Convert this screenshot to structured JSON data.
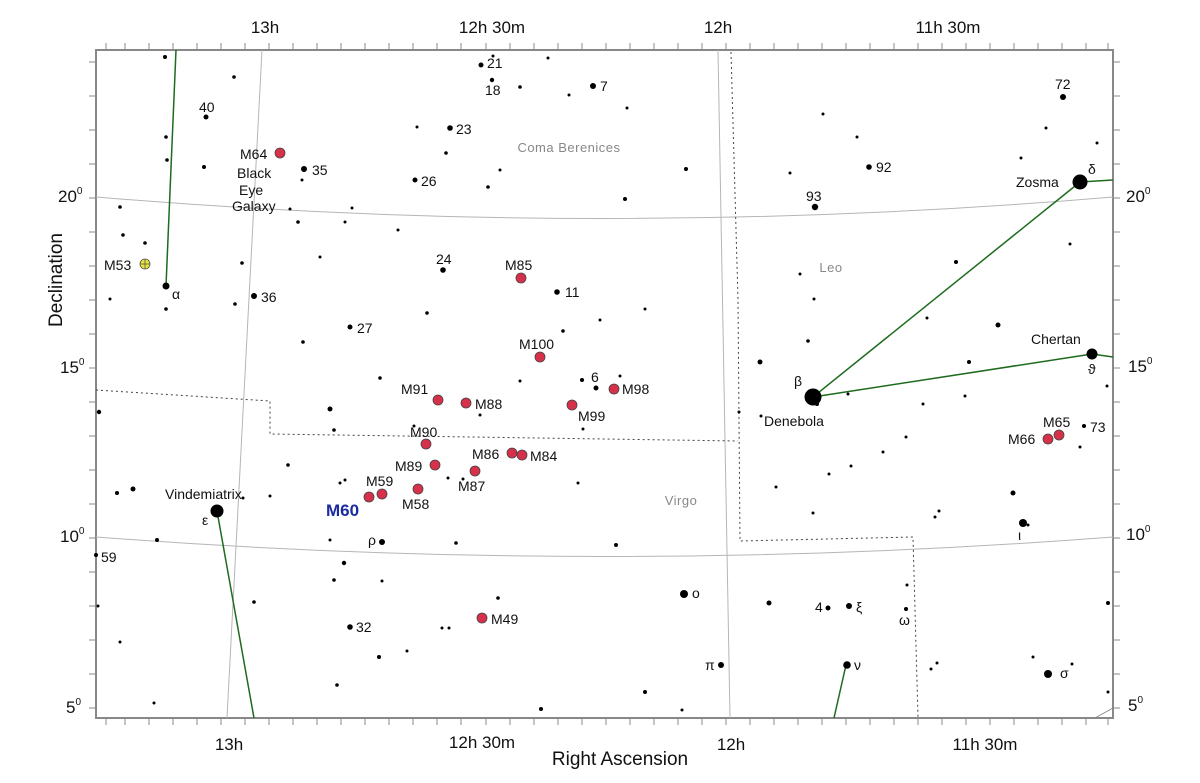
{
  "axes": {
    "ra_top_labels": [
      "13h",
      "12h 30m",
      "12h",
      "11h 30m"
    ],
    "ra_bottom_labels": [
      "13h",
      "12h 30m",
      "12h",
      "11h 30m"
    ],
    "dec_labels": [
      "5",
      "10",
      "15",
      "20"
    ],
    "degree_symbol": "0",
    "xlabel": "Right Ascension",
    "ylabel": "Declination"
  },
  "constellations": [
    "Coma Berenices",
    "Leo",
    "Virgo"
  ],
  "featured_label": "M60",
  "messier": [
    {
      "id": "m64",
      "label": "M64"
    },
    {
      "id": "m64_name_1",
      "label": "Black"
    },
    {
      "id": "m64_name_2",
      "label": "Eye"
    },
    {
      "id": "m64_name_3",
      "label": "Galaxy"
    },
    {
      "id": "m53",
      "label": "M53"
    },
    {
      "id": "m85",
      "label": "M85"
    },
    {
      "id": "m100",
      "label": "M100"
    },
    {
      "id": "m91",
      "label": "M91"
    },
    {
      "id": "m88",
      "label": "M88"
    },
    {
      "id": "m98",
      "label": "M98"
    },
    {
      "id": "m99",
      "label": "M99"
    },
    {
      "id": "m90",
      "label": "M90"
    },
    {
      "id": "m86",
      "label": "M86"
    },
    {
      "id": "m84",
      "label": "M84"
    },
    {
      "id": "m89",
      "label": "M89"
    },
    {
      "id": "m87",
      "label": "M87"
    },
    {
      "id": "m59",
      "label": "M59"
    },
    {
      "id": "m58",
      "label": "M58"
    },
    {
      "id": "m49",
      "label": "M49"
    },
    {
      "id": "m65",
      "label": "M65"
    },
    {
      "id": "m66",
      "label": "M66"
    }
  ],
  "star_labels": [
    "21",
    "18",
    "7",
    "40",
    "23",
    "35",
    "26",
    "24",
    "11",
    "36",
    "27",
    "6",
    "92",
    "93",
    "72",
    "73",
    "59",
    "32",
    "4"
  ],
  "named_stars": [
    "Zosma",
    "Chertan",
    "Denebola",
    "Vindemiatrix"
  ],
  "greek": [
    "α",
    "β",
    "δ",
    "ϑ",
    "ε",
    "ρ",
    "ο",
    "π",
    "ν",
    "ξ",
    "ω",
    "ι",
    "σ"
  ],
  "colors": {
    "galaxy": "#d6304a",
    "cluster": "#e8e43a",
    "line": "#1e6b1e",
    "grid": "#b0b0b0",
    "frame": "#888888"
  }
}
